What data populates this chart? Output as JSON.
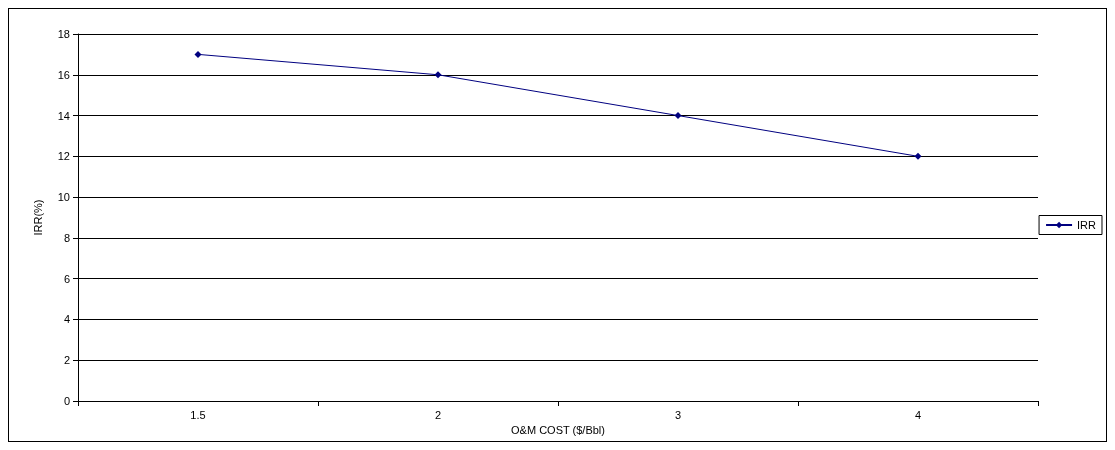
{
  "chart_data": {
    "type": "line",
    "xlabel": "O&M COST ($/Bbl)",
    "ylabel": "IRR(%)",
    "categories": [
      "1.5",
      "2",
      "3",
      "4"
    ],
    "series": [
      {
        "name": "IRR",
        "color": "#000080",
        "values": [
          17,
          16,
          14,
          12
        ]
      }
    ],
    "ylim": [
      0,
      18
    ],
    "yticks": [
      0,
      2,
      4,
      6,
      8,
      10,
      12,
      14,
      16,
      18
    ],
    "grid": "y",
    "legend": "right",
    "marker": "diamond",
    "line_style": "solid"
  }
}
